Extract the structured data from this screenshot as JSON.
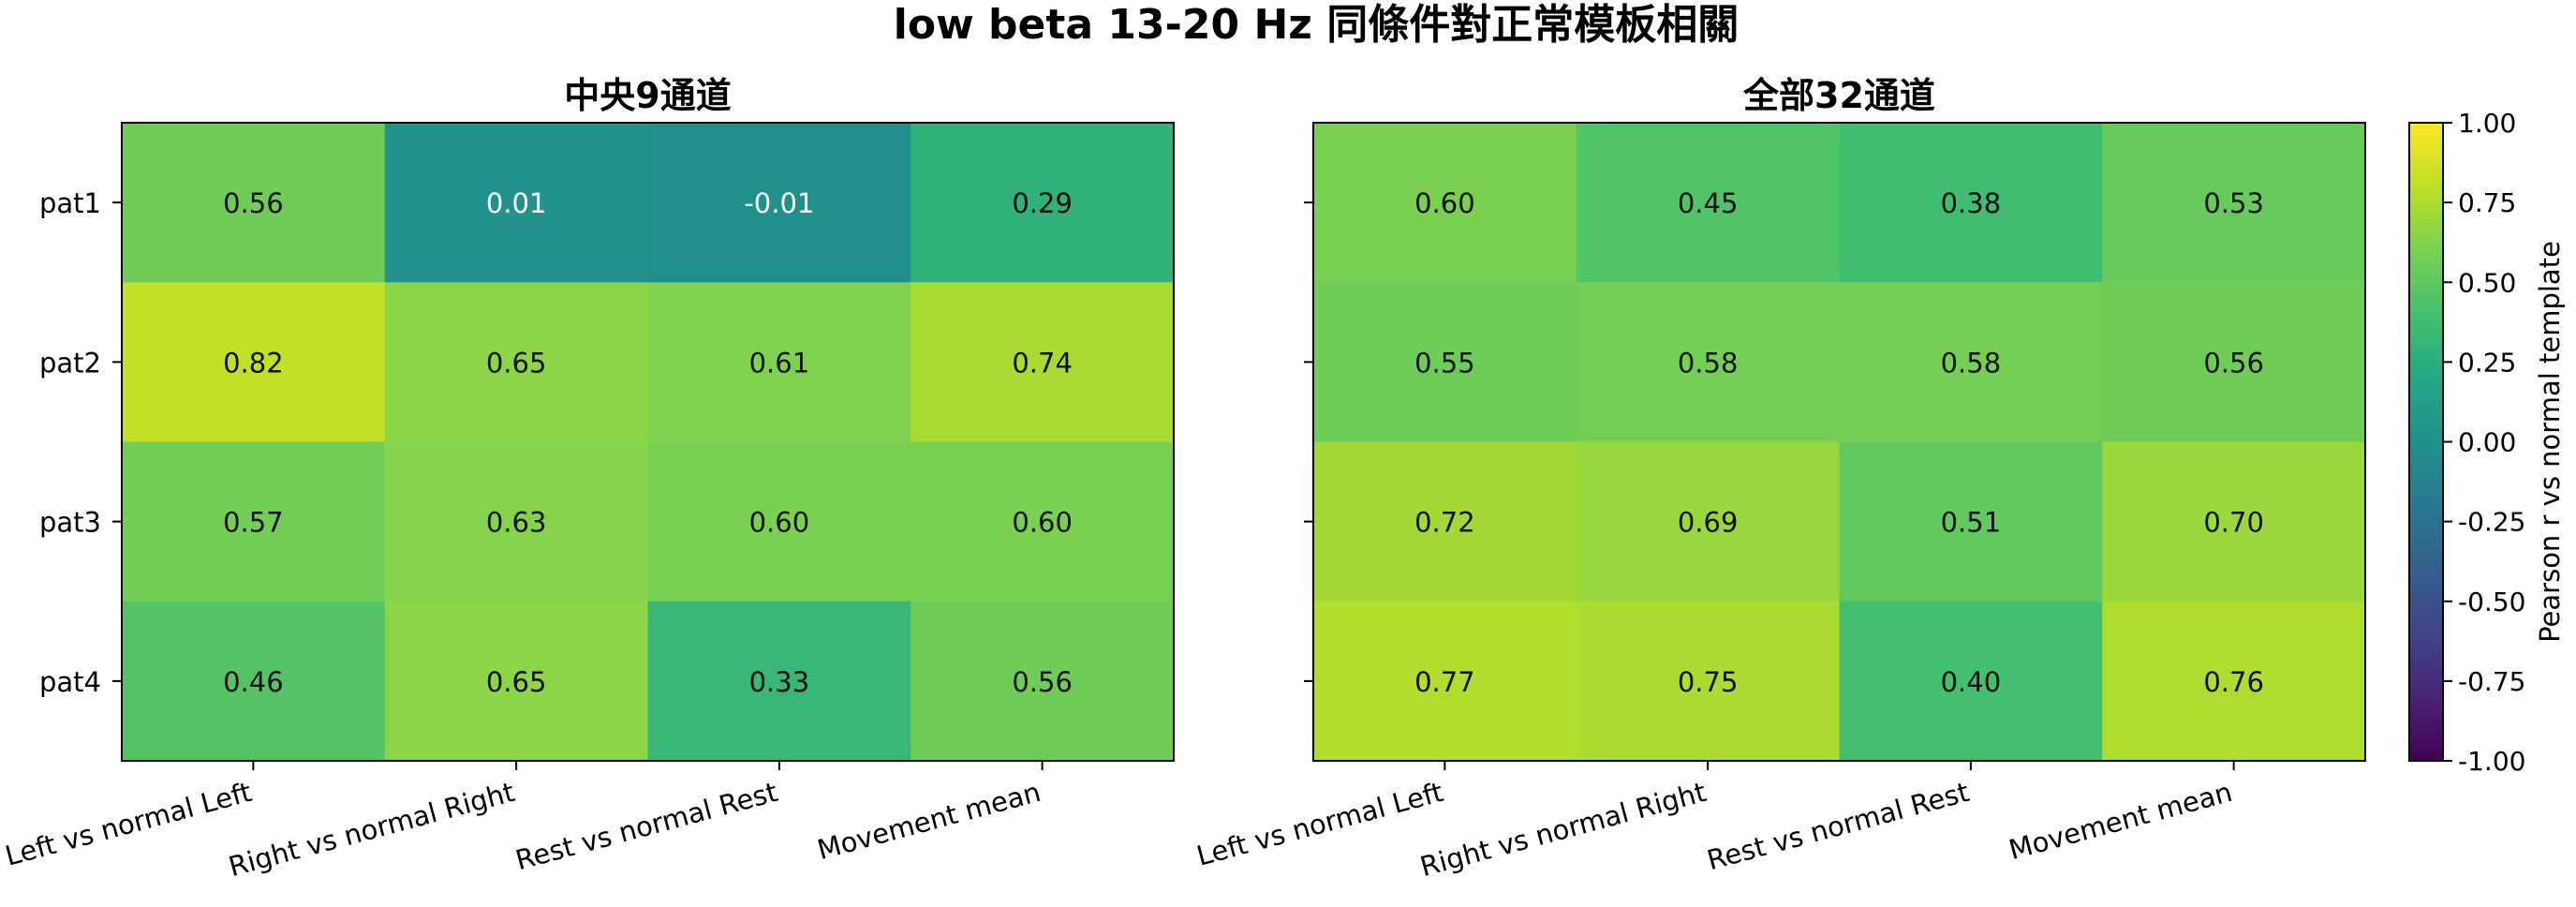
{
  "figure": {
    "title": "low beta 13-20 Hz 同條件對正常模板相關"
  },
  "chart_data": [
    {
      "type": "heatmap",
      "title": "中央9通道",
      "rows": [
        "pat1",
        "pat2",
        "pat3",
        "pat4"
      ],
      "columns": [
        "Left vs normal Left",
        "Right vs normal Right",
        "Rest vs normal Rest",
        "Movement mean"
      ],
      "values": [
        [
          0.56,
          0.01,
          -0.01,
          0.29
        ],
        [
          0.82,
          0.65,
          0.61,
          0.74
        ],
        [
          0.57,
          0.63,
          0.6,
          0.6
        ],
        [
          0.46,
          0.65,
          0.33,
          0.56
        ]
      ],
      "labels": [
        [
          "0.56",
          "0.01",
          "-0.01",
          "0.29"
        ],
        [
          "0.82",
          "0.65",
          "0.61",
          "0.74"
        ],
        [
          "0.57",
          "0.63",
          "0.60",
          "0.60"
        ],
        [
          "0.46",
          "0.65",
          "0.33",
          "0.56"
        ]
      ],
      "colormap": "viridis",
      "vmin": -1.0,
      "vmax": 1.0
    },
    {
      "type": "heatmap",
      "title": "全部32通道",
      "rows": [
        "pat1",
        "pat2",
        "pat3",
        "pat4"
      ],
      "columns": [
        "Left vs normal Left",
        "Right vs normal Right",
        "Rest vs normal Rest",
        "Movement mean"
      ],
      "values": [
        [
          0.6,
          0.45,
          0.38,
          0.53
        ],
        [
          0.55,
          0.58,
          0.58,
          0.56
        ],
        [
          0.72,
          0.69,
          0.51,
          0.7
        ],
        [
          0.77,
          0.75,
          0.4,
          0.76
        ]
      ],
      "labels": [
        [
          "0.60",
          "0.45",
          "0.38",
          "0.53"
        ],
        [
          "0.55",
          "0.58",
          "0.58",
          "0.56"
        ],
        [
          "0.72",
          "0.69",
          "0.51",
          "0.70"
        ],
        [
          "0.77",
          "0.75",
          "0.40",
          "0.76"
        ]
      ],
      "colormap": "viridis",
      "vmin": -1.0,
      "vmax": 1.0
    }
  ],
  "colorbar": {
    "label": "Pearson r vs normal template",
    "ticks": [
      1.0,
      0.75,
      0.5,
      0.25,
      0.0,
      -0.25,
      -0.5,
      -0.75,
      -1.0
    ],
    "tick_labels": [
      "1.00",
      "0.75",
      "0.50",
      "0.25",
      "0.00",
      "-0.25",
      "-0.50",
      "-0.75",
      "-1.00"
    ],
    "min": -1.0,
    "max": 1.0
  }
}
